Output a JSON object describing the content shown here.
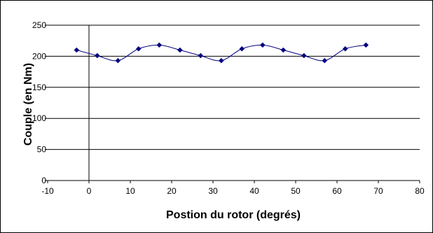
{
  "chart_data": {
    "type": "line",
    "title": "",
    "xlabel": "Postion du rotor (degrés)",
    "ylabel": "Couple (en Nm)",
    "xlim": [
      -10,
      80
    ],
    "ylim": [
      0,
      250
    ],
    "x_ticks": [
      -10,
      0,
      10,
      20,
      30,
      40,
      50,
      60,
      70,
      80
    ],
    "y_ticks": [
      0,
      50,
      100,
      150,
      200,
      250
    ],
    "grid": "horizontal",
    "legend": "none",
    "series": [
      {
        "color": "#000080",
        "marker": "diamond",
        "smooth": true,
        "x": [
          -3,
          2,
          7,
          12,
          17,
          22,
          27,
          32,
          37,
          42,
          47,
          52,
          57,
          62,
          67
        ],
        "y": [
          210,
          201,
          193,
          212,
          218,
          210,
          201,
          193,
          212,
          218,
          210,
          201,
          193,
          212,
          218
        ]
      }
    ]
  }
}
